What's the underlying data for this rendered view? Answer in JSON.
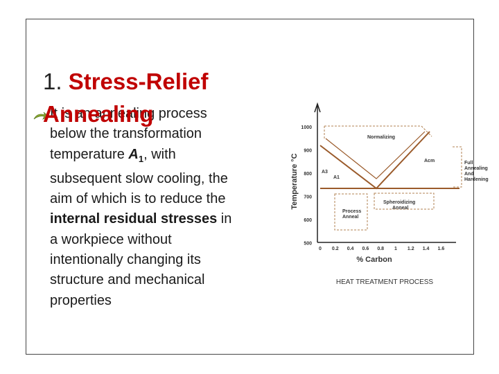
{
  "title": {
    "number": "1.",
    "lines": [
      "Stress-Relief",
      "Annealing"
    ]
  },
  "body": {
    "lines": [
      [
        "It is an annealing process"
      ],
      [
        "below the transformation"
      ],
      [
        "temperature ",
        "A",
        "1",
        ", with"
      ],
      [
        "subsequent slow cooling, the"
      ],
      [
        "aim of which is to reduce the"
      ],
      [
        "internal residual stresses",
        " in"
      ],
      [
        "a workpiece without"
      ],
      [
        "intentionally changing its"
      ],
      [
        "structure and mechanical"
      ],
      [
        "properties"
      ]
    ]
  },
  "figure": {
    "caption": "HEAT TREATMENT PROCESS",
    "y_label": "Temperature °C",
    "x_label": "% Carbon",
    "yticks": [
      1000,
      900,
      800,
      700,
      600,
      500
    ],
    "xticks": [
      0,
      0.2,
      0.4,
      0.6,
      0.8,
      1,
      1.2,
      1.4,
      1.6
    ],
    "labels": {
      "normalizing": "Normalizing",
      "a3": "A3",
      "a1": "A1",
      "acm": "Acm",
      "process": [
        "Process",
        "Anneal"
      ],
      "spheroidizing": [
        "Spheroidizing",
        "Anneal"
      ],
      "full": [
        "Full",
        "Annealing",
        "And",
        "Hardening"
      ]
    }
  }
}
